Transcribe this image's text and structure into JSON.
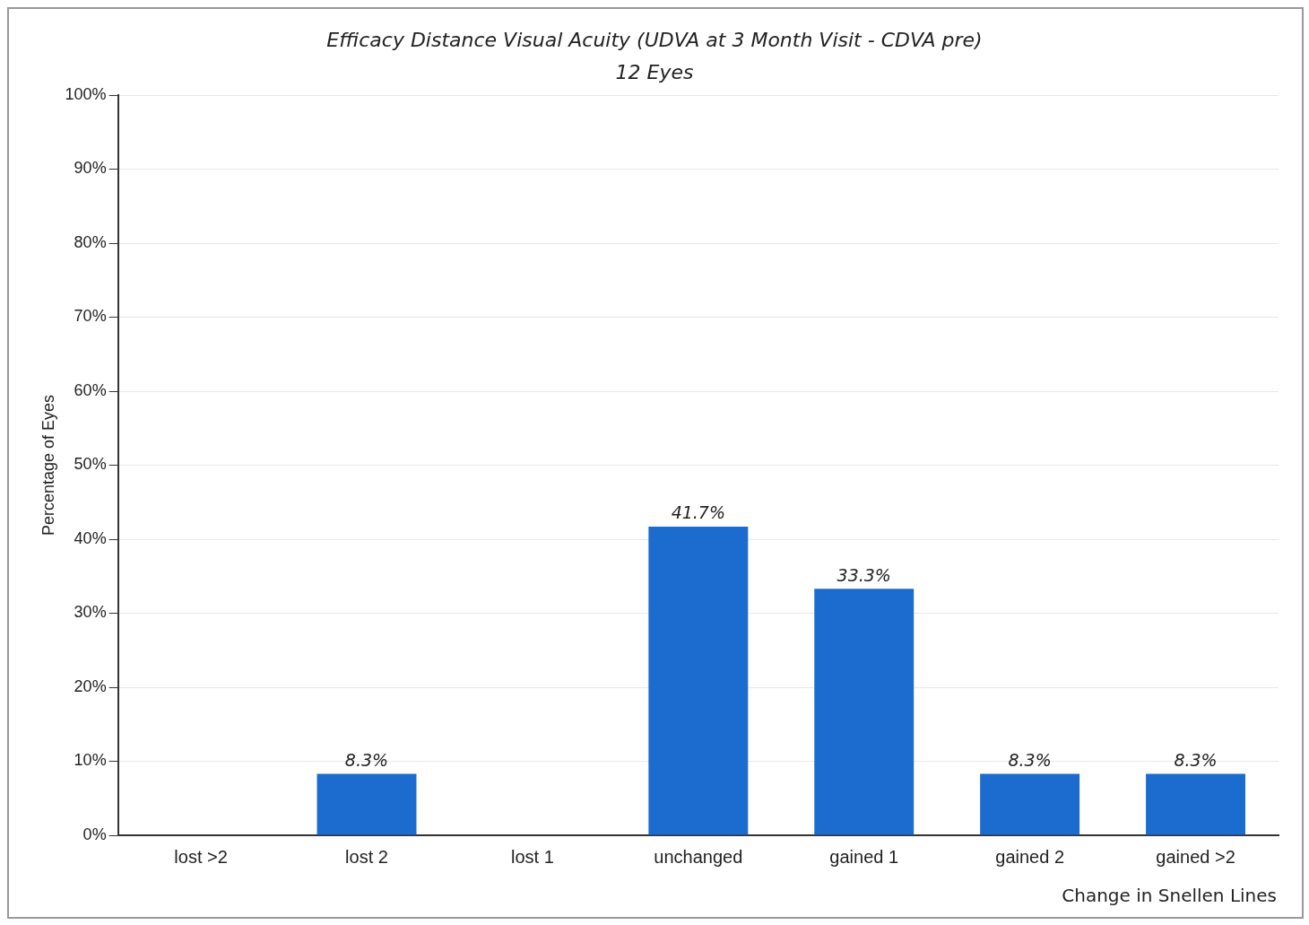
{
  "chart_data": {
    "type": "bar",
    "title": "Efficacy Distance Visual Acuity (UDVA at 3 Month Visit - CDVA pre)",
    "subtitle": "12 Eyes",
    "xlabel": "Change in Snellen Lines",
    "ylabel": "Percentage of Eyes",
    "categories": [
      "lost >2",
      "lost 2",
      "lost 1",
      "unchanged",
      "gained 1",
      "gained 2",
      "gained >2"
    ],
    "values": [
      0,
      8.3,
      0,
      41.7,
      33.3,
      8.3,
      8.3
    ],
    "value_labels": [
      null,
      "8.3%",
      null,
      "41.7%",
      "33.3%",
      "8.3%",
      "8.3%"
    ],
    "color": "#1c6cd0",
    "ylim": [
      0,
      100
    ],
    "yticks": [
      {
        "value": 0,
        "label": "0%"
      },
      {
        "value": 10,
        "label": "10%"
      },
      {
        "value": 20,
        "label": "20%"
      },
      {
        "value": 30,
        "label": "30%"
      },
      {
        "value": 40,
        "label": "40%"
      },
      {
        "value": 50,
        "label": "50%"
      },
      {
        "value": 60,
        "label": "60%"
      },
      {
        "value": 70,
        "label": "70%"
      },
      {
        "value": 80,
        "label": "80%"
      },
      {
        "value": 90,
        "label": "90%"
      },
      {
        "value": 100,
        "label": "100%"
      }
    ],
    "grid": "y",
    "legend": false
  }
}
